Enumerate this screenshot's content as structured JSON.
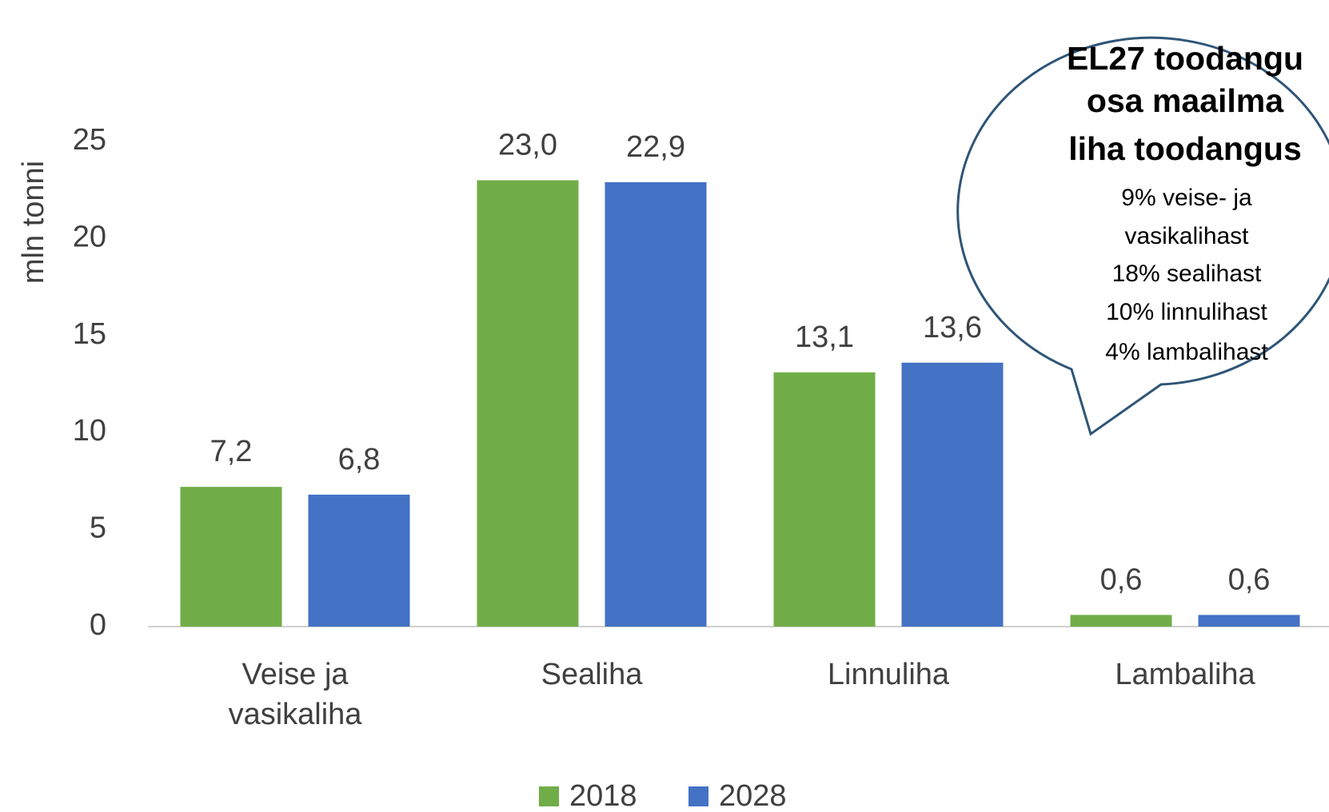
{
  "chart_data": {
    "type": "bar",
    "y_label": "mln tonni",
    "categories": [
      "Veise ja vasikaliha",
      "Sealiha",
      "Linnuliha",
      "Lambaliha"
    ],
    "series": [
      {
        "name": "2018",
        "color": "#70ad47",
        "values": [
          7.2,
          23.0,
          13.1,
          0.6
        ],
        "value_labels": [
          "7,2",
          "23,0",
          "13,1",
          "0,6"
        ]
      },
      {
        "name": "2028",
        "color": "#4472c4",
        "values": [
          6.8,
          22.9,
          13.6,
          0.6
        ],
        "value_labels": [
          "6,8",
          "22,9",
          "13,6",
          "0,6"
        ]
      }
    ],
    "ylim": [
      0,
      25
    ],
    "yticks": [
      0,
      5,
      10,
      15,
      20,
      25
    ],
    "grid": false,
    "legend": "bottom",
    "callout": {
      "title": [
        "EL27 toodangu",
        "osa maailma",
        "liha toodangus"
      ],
      "lines": [
        "9% veise- ja",
        "vasikalihast",
        "18% sealihast",
        "10% linnulihast",
        "4% lambalihast"
      ]
    }
  }
}
